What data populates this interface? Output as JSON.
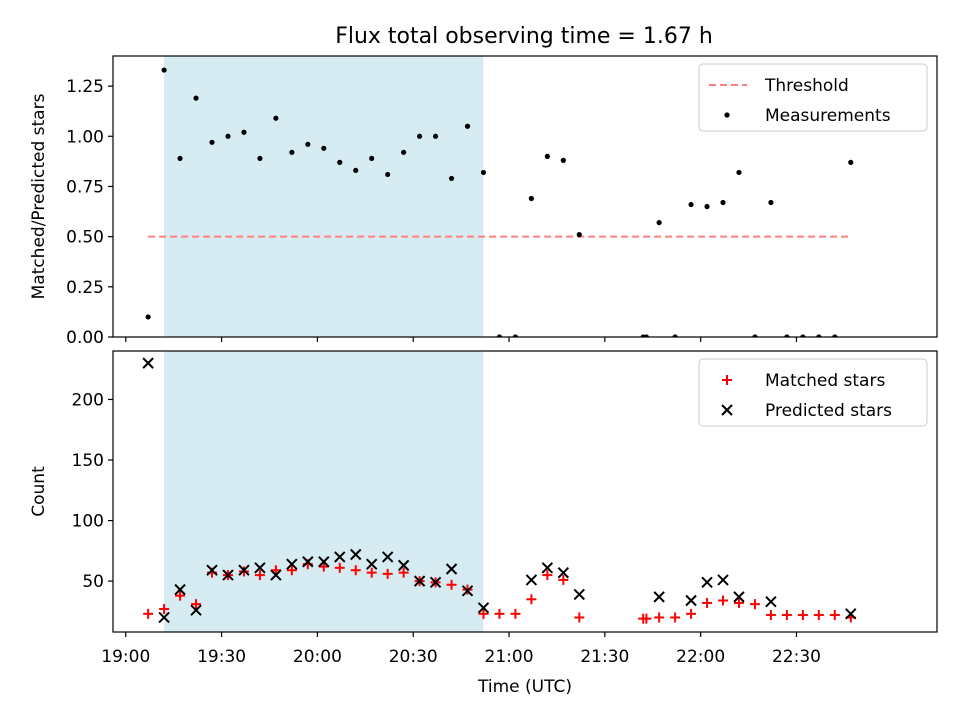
{
  "title": "Flux total observing time = 1.67 h",
  "colors": {
    "highlight": "#add8e6",
    "threshold": "#ff7f7f",
    "measurement": "#000000",
    "matched": "#ff0000",
    "predicted": "#000000"
  },
  "chart_data": [
    {
      "type": "scatter",
      "ylabel": "Matched/Predicted stars",
      "ylim": [
        0,
        1.4
      ],
      "yticks": [
        0.0,
        0.25,
        0.5,
        0.75,
        1.0,
        1.25
      ],
      "ytick_labels": [
        "0.00",
        "0.25",
        "0.50",
        "0.75",
        "1.00",
        "1.25"
      ],
      "shaded_interval": [
        "19:12",
        "20:52"
      ],
      "legend": "top-right",
      "threshold": {
        "name": "Threshold",
        "value": 0.5,
        "x_range": [
          "19:07",
          "22:47"
        ]
      },
      "series": [
        {
          "name": "Measurements",
          "points": [
            [
              "19:07",
              0.1
            ],
            [
              "19:12",
              1.33
            ],
            [
              "19:17",
              0.89
            ],
            [
              "19:22",
              1.19
            ],
            [
              "19:27",
              0.97
            ],
            [
              "19:32",
              1.0
            ],
            [
              "19:37",
              1.02
            ],
            [
              "19:42",
              0.89
            ],
            [
              "19:47",
              1.09
            ],
            [
              "19:52",
              0.92
            ],
            [
              "19:57",
              0.96
            ],
            [
              "20:02",
              0.94
            ],
            [
              "20:07",
              0.87
            ],
            [
              "20:12",
              0.83
            ],
            [
              "20:17",
              0.89
            ],
            [
              "20:22",
              0.81
            ],
            [
              "20:27",
              0.92
            ],
            [
              "20:32",
              1.0
            ],
            [
              "20:37",
              1.0
            ],
            [
              "20:42",
              0.79
            ],
            [
              "20:47",
              1.05
            ],
            [
              "20:52",
              0.82
            ],
            [
              "20:57",
              0.0
            ],
            [
              "21:02",
              0.0
            ],
            [
              "21:07",
              0.69
            ],
            [
              "21:12",
              0.9
            ],
            [
              "21:17",
              0.88
            ],
            [
              "21:22",
              0.51
            ],
            [
              "21:42",
              0.0
            ],
            [
              "21:43",
              0.0
            ],
            [
              "21:47",
              0.57
            ],
            [
              "21:52",
              0.0
            ],
            [
              "21:57",
              0.66
            ],
            [
              "22:02",
              0.65
            ],
            [
              "22:07",
              0.67
            ],
            [
              "22:12",
              0.82
            ],
            [
              "22:17",
              0.0
            ],
            [
              "22:22",
              0.67
            ],
            [
              "22:27",
              0.0
            ],
            [
              "22:32",
              0.0
            ],
            [
              "22:37",
              0.0
            ],
            [
              "22:42",
              0.0
            ],
            [
              "22:47",
              0.87
            ]
          ]
        }
      ]
    },
    {
      "type": "scatter",
      "xlabel": "Time (UTC)",
      "ylabel": "Count",
      "ylim": [
        8,
        240
      ],
      "yticks": [
        50,
        100,
        150,
        200
      ],
      "ytick_labels": [
        "50",
        "100",
        "150",
        "200"
      ],
      "xticks": [
        "19:00",
        "19:30",
        "20:00",
        "20:30",
        "21:00",
        "21:30",
        "22:00",
        "22:30"
      ],
      "xlim": [
        "18:56",
        "23:14"
      ],
      "shaded_interval": [
        "19:12",
        "20:52"
      ],
      "legend": "top-right",
      "series": [
        {
          "name": "Matched stars",
          "points": [
            [
              "19:07",
              23
            ],
            [
              "19:12",
              27
            ],
            [
              "19:17",
              38
            ],
            [
              "19:22",
              31
            ],
            [
              "19:27",
              57
            ],
            [
              "19:32",
              55
            ],
            [
              "19:37",
              58
            ],
            [
              "19:42",
              55
            ],
            [
              "19:47",
              59
            ],
            [
              "19:52",
              59
            ],
            [
              "19:57",
              64
            ],
            [
              "20:02",
              62
            ],
            [
              "20:07",
              61
            ],
            [
              "20:12",
              59
            ],
            [
              "20:17",
              57
            ],
            [
              "20:22",
              56
            ],
            [
              "20:27",
              57
            ],
            [
              "20:32",
              50
            ],
            [
              "20:37",
              49
            ],
            [
              "20:42",
              47
            ],
            [
              "20:47",
              43
            ],
            [
              "20:52",
              23
            ],
            [
              "20:57",
              23
            ],
            [
              "21:02",
              23
            ],
            [
              "21:07",
              35
            ],
            [
              "21:12",
              55
            ],
            [
              "21:17",
              51
            ],
            [
              "21:22",
              20
            ],
            [
              "21:42",
              19
            ],
            [
              "21:43",
              19
            ],
            [
              "21:47",
              20
            ],
            [
              "21:52",
              20
            ],
            [
              "21:57",
              23
            ],
            [
              "22:02",
              32
            ],
            [
              "22:07",
              34
            ],
            [
              "22:12",
              32
            ],
            [
              "22:17",
              31
            ],
            [
              "22:22",
              22
            ],
            [
              "22:27",
              22
            ],
            [
              "22:32",
              22
            ],
            [
              "22:37",
              22
            ],
            [
              "22:42",
              22
            ],
            [
              "22:47",
              20
            ]
          ]
        },
        {
          "name": "Predicted stars",
          "points": [
            [
              "19:07",
              230
            ],
            [
              "19:12",
              20
            ],
            [
              "19:17",
              43
            ],
            [
              "19:22",
              26
            ],
            [
              "19:27",
              59
            ],
            [
              "19:32",
              55
            ],
            [
              "19:37",
              59
            ],
            [
              "19:42",
              61
            ],
            [
              "19:47",
              55
            ],
            [
              "19:52",
              64
            ],
            [
              "19:57",
              66
            ],
            [
              "20:02",
              66
            ],
            [
              "20:07",
              70
            ],
            [
              "20:12",
              72
            ],
            [
              "20:17",
              64
            ],
            [
              "20:22",
              70
            ],
            [
              "20:27",
              63
            ],
            [
              "20:32",
              50
            ],
            [
              "20:37",
              49
            ],
            [
              "20:42",
              60
            ],
            [
              "20:47",
              42
            ],
            [
              "20:52",
              28
            ],
            [
              "21:07",
              51
            ],
            [
              "21:12",
              61
            ],
            [
              "21:17",
              57
            ],
            [
              "21:22",
              39
            ],
            [
              "21:47",
              37
            ],
            [
              "21:57",
              34
            ],
            [
              "22:02",
              49
            ],
            [
              "22:07",
              51
            ],
            [
              "22:12",
              37
            ],
            [
              "22:22",
              33
            ],
            [
              "22:47",
              23
            ]
          ]
        }
      ]
    }
  ]
}
